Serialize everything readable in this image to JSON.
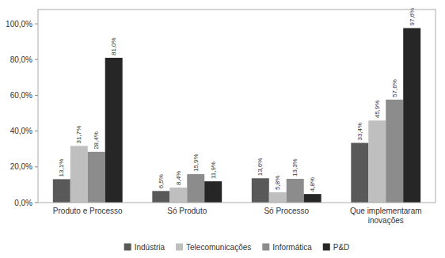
{
  "chart_data": {
    "type": "bar",
    "categories": [
      "Produto e Processo",
      "Só Produto",
      "Só Processo",
      "Que implementaram\ninovações"
    ],
    "series": [
      {
        "name": "Indústria",
        "color": "#595959",
        "values": [
          13.1,
          6.5,
          13.6,
          33.4
        ],
        "value_labels": [
          "13,1%",
          "6,5%",
          "13,6%",
          "33,4%"
        ]
      },
      {
        "name": "Telecomunicações",
        "color": "#bfbfbf",
        "values": [
          31.7,
          8.4,
          5.8,
          45.9
        ],
        "value_labels": [
          "31,7%",
          "8,4%",
          "5,8%",
          "45,9%"
        ]
      },
      {
        "name": "Informática",
        "color": "#8c8c8c",
        "values": [
          28.4,
          15.9,
          13.3,
          57.6
        ],
        "value_labels": [
          "28,4%",
          "15,9%",
          "13,3%",
          "57,6%"
        ]
      },
      {
        "name": "P&D",
        "color": "#262626",
        "values": [
          81.0,
          11.9,
          4.8,
          97.6
        ],
        "value_labels": [
          "81,0%",
          "11,9%",
          "4,8%",
          "97,6%"
        ]
      }
    ],
    "ylim": [
      0,
      108
    ],
    "yticks": [
      {
        "value": 0,
        "label": "0,0%"
      },
      {
        "value": 20,
        "label": "20,0%"
      },
      {
        "value": 40,
        "label": "40,0%"
      },
      {
        "value": 60,
        "label": "60,0%"
      },
      {
        "value": 80,
        "label": "80,0%"
      },
      {
        "value": 100,
        "label": "100,0%"
      }
    ],
    "grid": false,
    "legend": "bottom",
    "data_labels": true
  }
}
